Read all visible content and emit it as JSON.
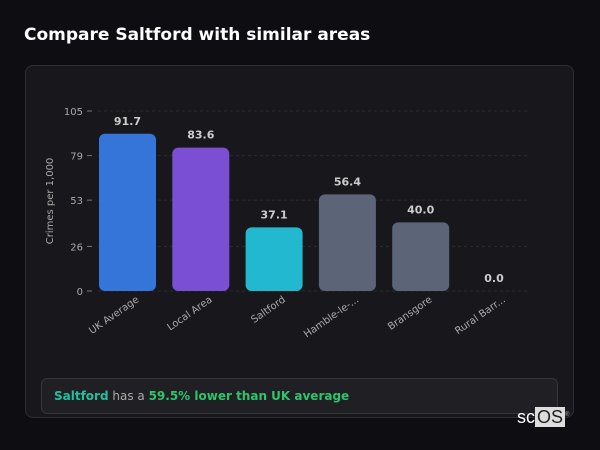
{
  "page_title": "Compare Saltford with similar areas",
  "summary": {
    "area": "Saltford",
    "middle": " has a ",
    "comparison": "59.5% lower than UK average"
  },
  "logo": {
    "part1": "sc",
    "part2": "OS",
    "mark": "®"
  },
  "chart_data": {
    "type": "bar",
    "title": "",
    "xlabel": "",
    "ylabel": "Crimes per 1,000",
    "ylim": [
      0,
      105
    ],
    "yticks": [
      0,
      26,
      53,
      79,
      105
    ],
    "grid": true,
    "categories": [
      "UK Average",
      "Local Area",
      "Saltford",
      "Hamble-le-...",
      "Bransgore",
      "Rural Barr..."
    ],
    "values": [
      91.7,
      83.6,
      37.1,
      56.4,
      40.0,
      0.0
    ],
    "value_labels": [
      "91.7",
      "83.6",
      "37.1",
      "56.4",
      "40.0",
      "0.0"
    ],
    "colors": [
      "#3575d9",
      "#7b4fd4",
      "#22b8cf",
      "#5b6577",
      "#5b6577",
      "#5b6577"
    ]
  }
}
